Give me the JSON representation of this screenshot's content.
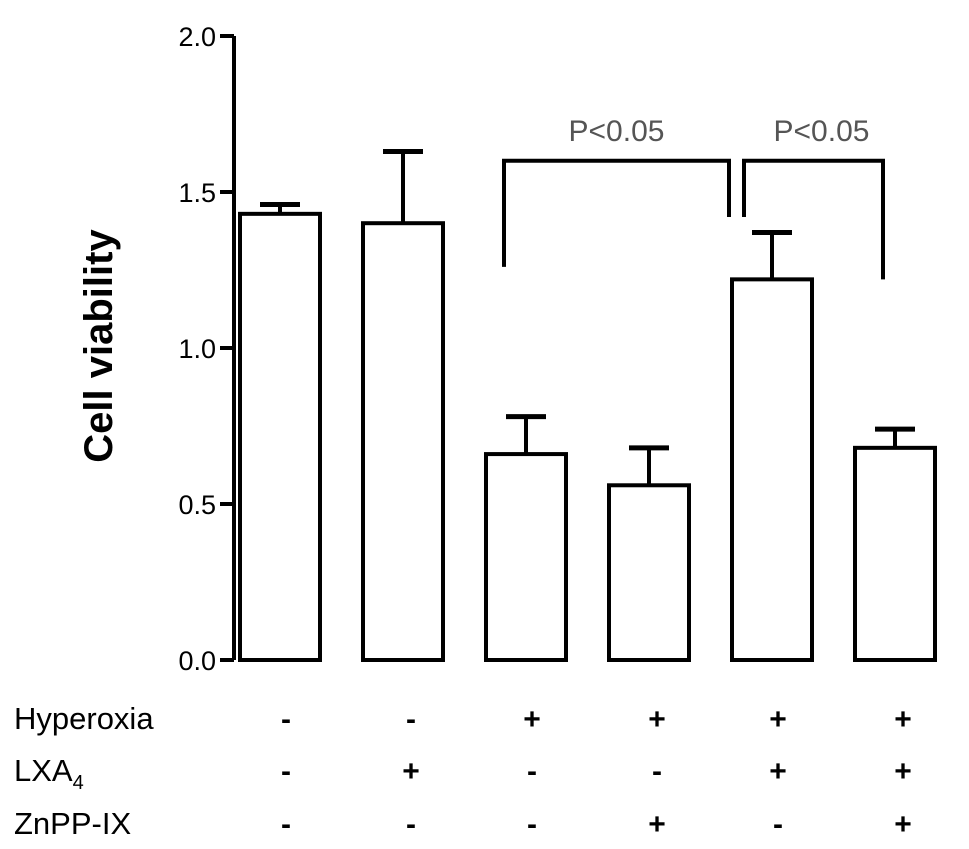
{
  "chart_data": {
    "type": "bar",
    "ylabel": "Cell viability",
    "ylim": [
      0.0,
      2.0
    ],
    "yticks": [
      "0.0",
      "0.5",
      "1.0",
      "1.5",
      "2.0"
    ],
    "bars": [
      {
        "value": 1.43,
        "error": 0.03
      },
      {
        "value": 1.4,
        "error": 0.23
      },
      {
        "value": 0.66,
        "error": 0.12
      },
      {
        "value": 0.56,
        "error": 0.12
      },
      {
        "value": 1.22,
        "error": 0.15
      },
      {
        "value": 0.68,
        "error": 0.06
      }
    ],
    "conditions": [
      {
        "label": "Hyperoxia",
        "marks": [
          "-",
          "-",
          "+",
          "+",
          "+",
          "+"
        ]
      },
      {
        "label": "LXA",
        "subscript": "4",
        "marks": [
          "-",
          "+",
          "-",
          "-",
          "+",
          "+"
        ]
      },
      {
        "label": "ZnPP-IX",
        "marks": [
          "-",
          "-",
          "-",
          "+",
          "-",
          "+"
        ]
      }
    ],
    "significance": [
      {
        "from": 2,
        "to": 4,
        "label": "P<0.05",
        "level": 1.6
      },
      {
        "from": 4,
        "to": 5,
        "label": "P<0.05",
        "level": 1.6
      }
    ]
  }
}
